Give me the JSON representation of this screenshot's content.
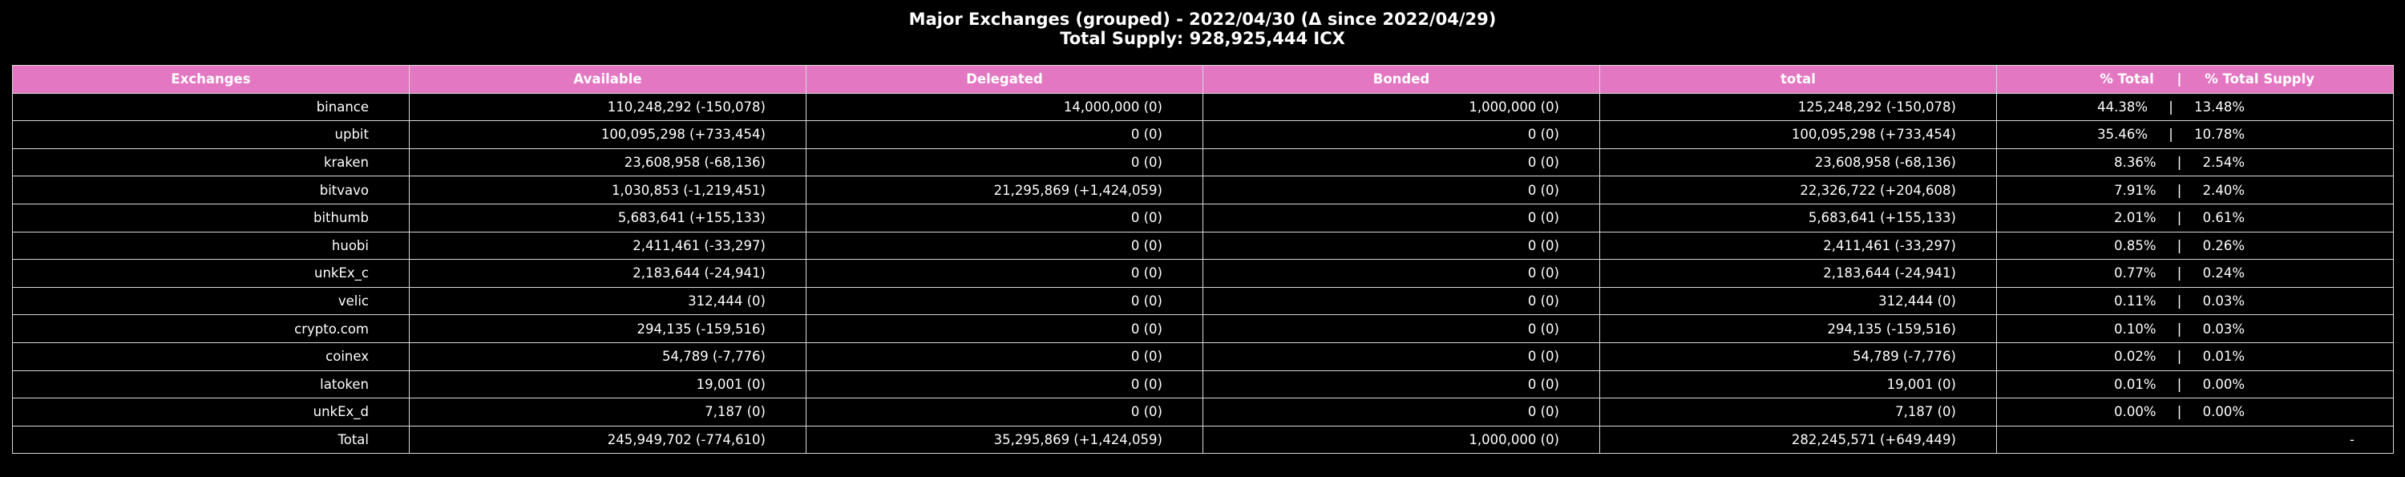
{
  "title": {
    "line1": "Major Exchanges (grouped) - 2022/04/30 (Δ since 2022/04/29)",
    "line2": "Total Supply: 928,925,444 ICX"
  },
  "colors": {
    "header_bg": "#e377c2",
    "page_bg": "#000000",
    "text": "#ffffff"
  },
  "columns": [
    "Exchanges",
    "Available",
    "Delegated",
    "Bonded",
    "total",
    "% Total     |     % Total Supply"
  ],
  "rows": [
    {
      "name": "binance",
      "available": "110,248,292 (-150,078)",
      "delegated": "14,000,000 (0)",
      "bonded": "1,000,000 (0)",
      "total": "125,248,292 (-150,078)",
      "pct": "44.38%     |     13.48%"
    },
    {
      "name": "upbit",
      "available": "100,095,298 (+733,454)",
      "delegated": "0 (0)",
      "bonded": "0 (0)",
      "total": "100,095,298 (+733,454)",
      "pct": "35.46%     |     10.78%"
    },
    {
      "name": "kraken",
      "available": "23,608,958 (-68,136)",
      "delegated": "0 (0)",
      "bonded": "0 (0)",
      "total": "23,608,958 (-68,136)",
      "pct": "8.36%     |     2.54%"
    },
    {
      "name": "bitvavo",
      "available": "1,030,853 (-1,219,451)",
      "delegated": "21,295,869 (+1,424,059)",
      "bonded": "0 (0)",
      "total": "22,326,722 (+204,608)",
      "pct": "7.91%     |     2.40%"
    },
    {
      "name": "bithumb",
      "available": "5,683,641 (+155,133)",
      "delegated": "0 (0)",
      "bonded": "0 (0)",
      "total": "5,683,641 (+155,133)",
      "pct": "2.01%     |     0.61%"
    },
    {
      "name": "huobi",
      "available": "2,411,461 (-33,297)",
      "delegated": "0 (0)",
      "bonded": "0 (0)",
      "total": "2,411,461 (-33,297)",
      "pct": "0.85%     |     0.26%"
    },
    {
      "name": "unkEx_c",
      "available": "2,183,644 (-24,941)",
      "delegated": "0 (0)",
      "bonded": "0 (0)",
      "total": "2,183,644 (-24,941)",
      "pct": "0.77%     |     0.24%"
    },
    {
      "name": "velic",
      "available": "312,444 (0)",
      "delegated": "0 (0)",
      "bonded": "0 (0)",
      "total": "312,444 (0)",
      "pct": "0.11%     |     0.03%"
    },
    {
      "name": "crypto.com",
      "available": "294,135 (-159,516)",
      "delegated": "0 (0)",
      "bonded": "0 (0)",
      "total": "294,135 (-159,516)",
      "pct": "0.10%     |     0.03%"
    },
    {
      "name": "coinex",
      "available": "54,789 (-7,776)",
      "delegated": "0 (0)",
      "bonded": "0 (0)",
      "total": "54,789 (-7,776)",
      "pct": "0.02%     |     0.01%"
    },
    {
      "name": "latoken",
      "available": "19,001 (0)",
      "delegated": "0 (0)",
      "bonded": "0 (0)",
      "total": "19,001 (0)",
      "pct": "0.01%     |     0.00%"
    },
    {
      "name": "unkEx_d",
      "available": "7,187 (0)",
      "delegated": "0 (0)",
      "bonded": "0 (0)",
      "total": "7,187 (0)",
      "pct": "0.00%     |     0.00%"
    },
    {
      "name": "Total",
      "available": "245,949,702 (-774,610)",
      "delegated": "35,295,869 (+1,424,059)",
      "bonded": "1,000,000 (0)",
      "total": "282,245,571 (+649,449)",
      "pct": "-"
    }
  ]
}
